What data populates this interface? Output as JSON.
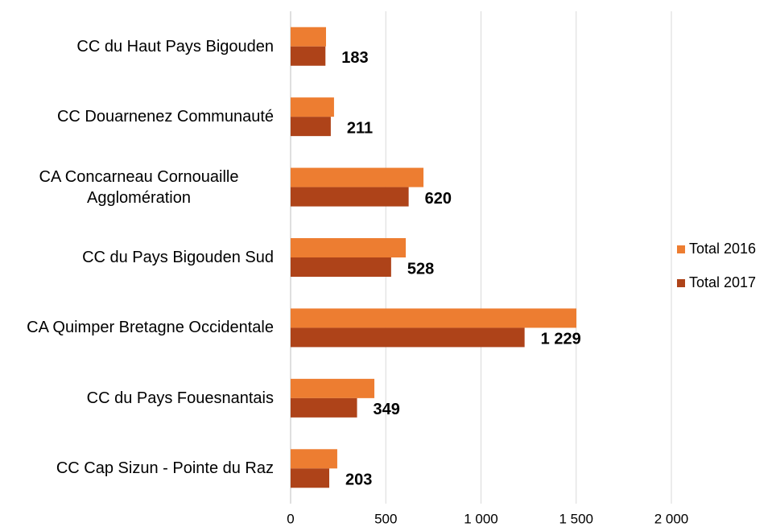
{
  "chart_data": {
    "type": "hbar",
    "categories": [
      "CC du Haut Pays Bigouden",
      "CC Douarnenez Communauté",
      "CA Concarneau Cornouaille Agglomération",
      "CC du Pays Bigouden Sud",
      "CA Quimper Bretagne Occidentale",
      "CC du Pays Fouesnantais",
      "CC Cap Sizun - Pointe du Raz"
    ],
    "series": [
      {
        "name": "Total 2016",
        "color": "#ed7d31",
        "values": [
          186,
          228,
          698,
          605,
          1501,
          440,
          245
        ]
      },
      {
        "name": "Total 2017",
        "color": "#ae4319",
        "values": [
          183,
          211,
          620,
          528,
          1229,
          349,
          203
        ],
        "value_labels": [
          "183",
          "211",
          "620",
          "528",
          "1 229",
          "349",
          "203"
        ]
      }
    ],
    "xlim": [
      0,
      2000
    ],
    "xticks": [
      0,
      500,
      {
        "value": 1000,
        "label": "1 000"
      },
      {
        "value": 1500,
        "label": "1 500"
      },
      {
        "value": 2000,
        "label": "2 000"
      }
    ],
    "grid": true,
    "legend": "right"
  }
}
